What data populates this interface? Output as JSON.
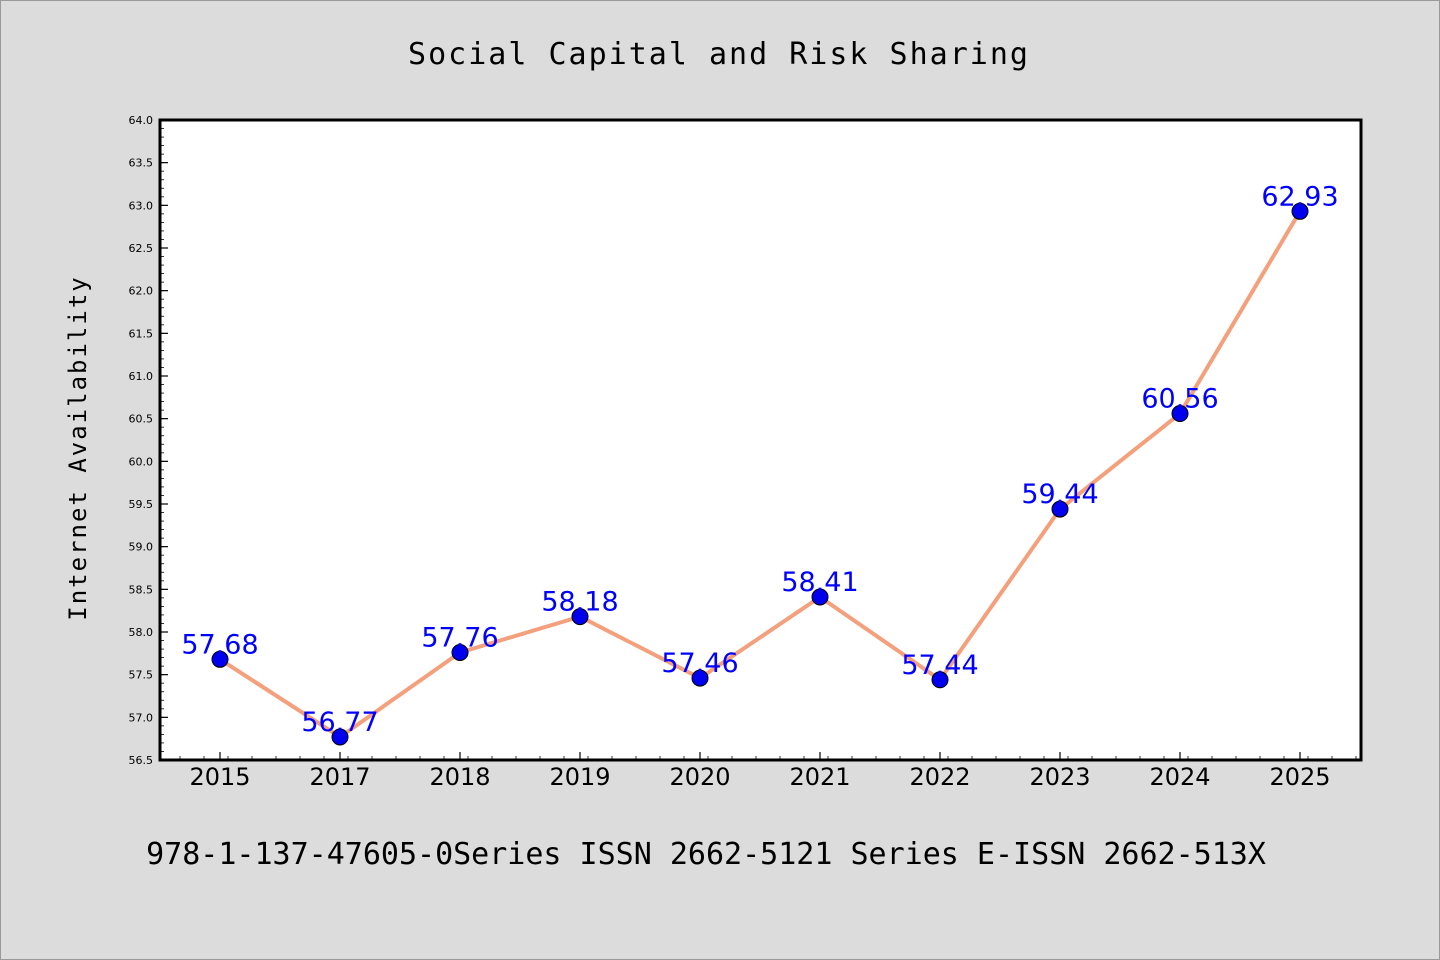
{
  "chart_data": {
    "type": "line",
    "title": "Social Capital and Risk Sharing",
    "ylabel": "Internet Availability",
    "xlabel": "",
    "categories": [
      "2015",
      "2017",
      "2018",
      "2019",
      "2020",
      "2021",
      "2022",
      "2023",
      "2024",
      "2025"
    ],
    "series": [
      {
        "values": [
          57.68,
          56.77,
          57.76,
          58.18,
          57.46,
          58.41,
          57.44,
          59.44,
          60.56,
          62.93
        ],
        "labels": [
          "57.68",
          "56.77",
          "57.76",
          "58.18",
          "57.46",
          "58.41",
          "57.44",
          "59.44",
          "60.56",
          "62.93"
        ],
        "line_color": "#f4a07c",
        "marker_color": "#0000ee",
        "label_color": "#0000ff"
      }
    ],
    "ylim": [
      56.5,
      64.0
    ],
    "yticks": [
      "56.5",
      "57.0",
      "57.5",
      "58.0",
      "58.5",
      "59.0",
      "59.5",
      "60.0",
      "60.5",
      "61.0",
      "61.5",
      "62.0",
      "62.5",
      "63.0",
      "63.5",
      "64.0"
    ],
    "grid": false,
    "legend": "none"
  },
  "footer": {
    "text": "978-1-137-47605-0Series ISSN 2662-5121 Series E-ISSN 2662-513X"
  },
  "colors": {
    "background": "#dcdcdc",
    "plot_background": "#ffffff",
    "axis": "#000000"
  }
}
